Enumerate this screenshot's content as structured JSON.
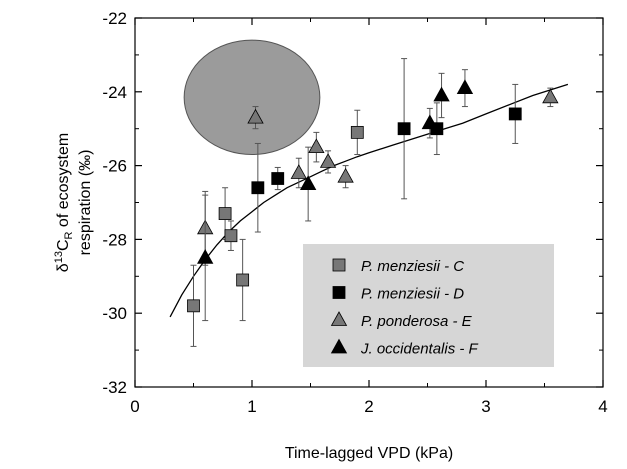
{
  "chart_data": {
    "type": "scatter",
    "xlabel": "Time-lagged VPD (kPa)",
    "ylabel": {
      "prefix": "δ",
      "sup": "13",
      "main": "C",
      "sub": "R",
      "rest": " of ecosystem",
      "line2": "respiration (‰)"
    },
    "xlim": [
      0,
      4
    ],
    "ylim": [
      -32,
      -22
    ],
    "xticks": [
      0,
      1,
      2,
      3,
      4
    ],
    "yticks": [
      -32,
      -30,
      -28,
      -26,
      -24,
      -22
    ],
    "xtick_labels": [
      "0",
      "1",
      "2",
      "3",
      "4"
    ],
    "ytick_labels": [
      "-32",
      "-30",
      "-28",
      "-26",
      "-24",
      "-22"
    ],
    "grid": false,
    "legend_position": "lower-right",
    "colors": {
      "gray": "#777777",
      "black": "#000000",
      "legend_bg": "#d6d6d6",
      "ellipse_fill": "#9b9b9b",
      "ellipse_stroke": "#555555"
    },
    "series": [
      {
        "name": "P. menziesii - C",
        "marker": "square",
        "color": "#777777",
        "points": [
          {
            "x": 0.5,
            "y": -29.8,
            "err": 1.1
          },
          {
            "x": 0.77,
            "y": -27.3,
            "err": 0.7
          },
          {
            "x": 0.82,
            "y": -27.9,
            "err": 0.4
          },
          {
            "x": 0.92,
            "y": -29.1,
            "err": 1.1
          },
          {
            "x": 1.9,
            "y": -25.1,
            "err": 0.6
          }
        ]
      },
      {
        "name": "P. menziesii - D",
        "marker": "square",
        "color": "#000000",
        "points": [
          {
            "x": 1.05,
            "y": -26.6,
            "err": 1.2
          },
          {
            "x": 1.22,
            "y": -26.35,
            "err": 0.3
          },
          {
            "x": 2.3,
            "y": -25.0,
            "err": 1.9
          },
          {
            "x": 2.58,
            "y": -25.0,
            "err": 0.7
          },
          {
            "x": 3.25,
            "y": -24.6,
            "err": 0.8
          }
        ]
      },
      {
        "name": "P. ponderosa - E",
        "marker": "triangle",
        "color": "#777777",
        "points": [
          {
            "x": 0.6,
            "y": -27.7,
            "err": 1.0
          },
          {
            "x": 1.03,
            "y": -24.7,
            "err": 0.3
          },
          {
            "x": 1.4,
            "y": -26.2,
            "err": 0.4
          },
          {
            "x": 1.55,
            "y": -25.5,
            "err": 0.4
          },
          {
            "x": 1.65,
            "y": -25.9,
            "err": 0.3
          },
          {
            "x": 1.8,
            "y": -26.3,
            "err": 0.3
          },
          {
            "x": 3.55,
            "y": -24.15,
            "err": 0.25
          }
        ]
      },
      {
        "name": "J. occidentalis - F",
        "marker": "triangle",
        "color": "#000000",
        "points": [
          {
            "x": 0.6,
            "y": -28.5,
            "err": 1.7
          },
          {
            "x": 1.48,
            "y": -26.5,
            "err": 1.0
          },
          {
            "x": 2.52,
            "y": -24.85,
            "err": 0.4
          },
          {
            "x": 2.62,
            "y": -24.1,
            "err": 0.6
          },
          {
            "x": 2.82,
            "y": -23.9,
            "err": 0.5
          }
        ]
      }
    ],
    "fit_curve": {
      "x": [
        0.3,
        0.4,
        0.5,
        0.6,
        0.7,
        0.8,
        0.9,
        1.0,
        1.1,
        1.2,
        1.3,
        1.4,
        1.5,
        1.6,
        1.7,
        1.8,
        1.9,
        2.0,
        2.2,
        2.4,
        2.6,
        2.8,
        3.0,
        3.2,
        3.4,
        3.7
      ],
      "y": [
        -30.1,
        -29.5,
        -29.0,
        -28.55,
        -28.15,
        -27.8,
        -27.5,
        -27.25,
        -27.0,
        -26.8,
        -26.6,
        -26.45,
        -26.3,
        -26.15,
        -26.0,
        -25.88,
        -25.76,
        -25.65,
        -25.45,
        -25.25,
        -25.05,
        -24.85,
        -24.6,
        -24.35,
        -24.1,
        -23.8
      ]
    },
    "shaded_region": {
      "cx": 1.0,
      "cy": -24.15,
      "rx": 0.58,
      "ry": 1.55
    }
  }
}
